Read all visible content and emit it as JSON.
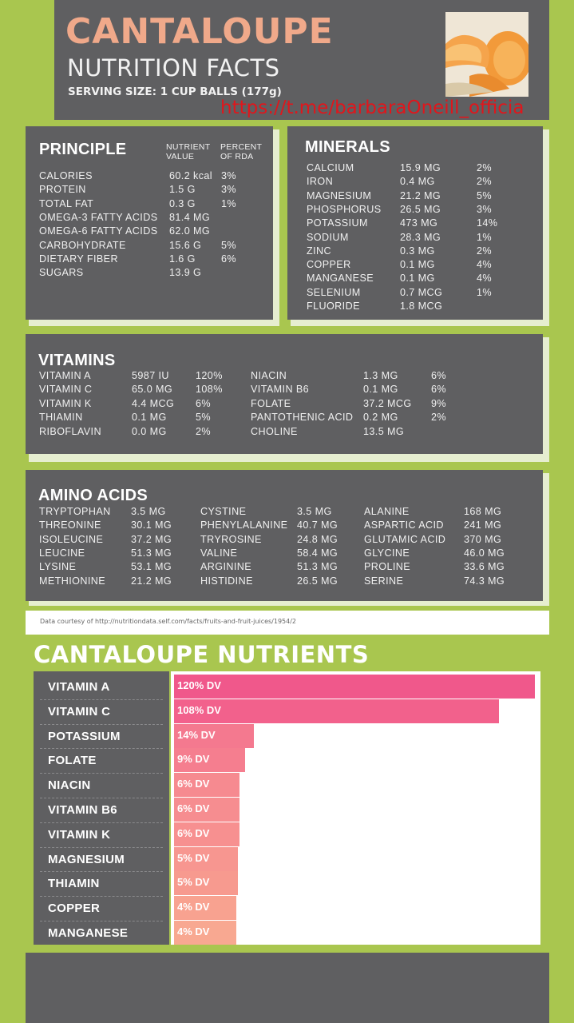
{
  "header": {
    "title": "CANTALOUPE",
    "subtitle": "NUTRITION FACTS",
    "serving": "SERVING SIZE: 1 CUP BALLS (177g)"
  },
  "watermark": "https://t.me/barbaraOneill_officia",
  "principle": {
    "title": "PRINCIPLE",
    "col_value": "NUTRIENT VALUE",
    "col_rda": "PERCENT OF RDA",
    "rows": [
      {
        "name": "CALORIES",
        "value": "60.2 kcal",
        "rda": "3%"
      },
      {
        "name": "PROTEIN",
        "value": "1.5 G",
        "rda": "3%"
      },
      {
        "name": "TOTAL FAT",
        "value": "0.3 G",
        "rda": "1%"
      },
      {
        "name": "OMEGA-3 FATTY ACIDS",
        "value": "81.4 MG",
        "rda": ""
      },
      {
        "name": "OMEGA-6 FATTY ACIDS",
        "value": "62.0 MG",
        "rda": ""
      },
      {
        "name": "CARBOHYDRATE",
        "value": "15.6 G",
        "rda": "5%"
      },
      {
        "name": "DIETARY FIBER",
        "value": "1.6 G",
        "rda": "6%"
      },
      {
        "name": "SUGARS",
        "value": "13.9 G",
        "rda": ""
      }
    ]
  },
  "minerals": {
    "title": "MINERALS",
    "rows": [
      {
        "name": "CALCIUM",
        "value": "15.9 MG",
        "rda": "2%"
      },
      {
        "name": "IRON",
        "value": "0.4 MG",
        "rda": "2%"
      },
      {
        "name": "MAGNESIUM",
        "value": "21.2 MG",
        "rda": "5%"
      },
      {
        "name": "PHOSPHORUS",
        "value": "26.5 MG",
        "rda": "3%"
      },
      {
        "name": "POTASSIUM",
        "value": "473 MG",
        "rda": "14%"
      },
      {
        "name": "SODIUM",
        "value": "28.3 MG",
        "rda": "1%"
      },
      {
        "name": "ZINC",
        "value": "0.3 MG",
        "rda": "2%"
      },
      {
        "name": "COPPER",
        "value": "0.1 MG",
        "rda": "4%"
      },
      {
        "name": "MANGANESE",
        "value": "0.1 MG",
        "rda": "4%"
      },
      {
        "name": "SELENIUM",
        "value": "0.7 MCG",
        "rda": "1%"
      },
      {
        "name": "FLUORIDE",
        "value": "1.8 MCG",
        "rda": ""
      }
    ]
  },
  "vitamins": {
    "title": "VITAMINS",
    "left": [
      {
        "name": "VITAMIN A",
        "value": "5987 IU",
        "rda": "120%"
      },
      {
        "name": "VITAMIN C",
        "value": "65.0 MG",
        "rda": "108%"
      },
      {
        "name": "VITAMIN K",
        "value": "4.4 MCG",
        "rda": "6%"
      },
      {
        "name": "THIAMIN",
        "value": "0.1 MG",
        "rda": "5%"
      },
      {
        "name": "RIBOFLAVIN",
        "value": "0.0 MG",
        "rda": "2%"
      }
    ],
    "right": [
      {
        "name": "NIACIN",
        "value": "1.3 MG",
        "rda": "6%"
      },
      {
        "name": "VITAMIN B6",
        "value": "0.1 MG",
        "rda": "6%"
      },
      {
        "name": "FOLATE",
        "value": "37.2 MCG",
        "rda": "9%"
      },
      {
        "name": "PANTOTHENIC ACID",
        "value": "0.2 MG",
        "rda": "2%"
      },
      {
        "name": "CHOLINE",
        "value": "13.5 MG",
        "rda": ""
      }
    ]
  },
  "amino": {
    "title": "AMINO ACIDS",
    "col1": [
      {
        "name": "TRYPTOPHAN",
        "value": "3.5 MG"
      },
      {
        "name": "THREONINE",
        "value": "30.1 MG"
      },
      {
        "name": "ISOLEUCINE",
        "value": "37.2 MG"
      },
      {
        "name": "LEUCINE",
        "value": "51.3 MG"
      },
      {
        "name": "LYSINE",
        "value": "53.1 MG"
      },
      {
        "name": "METHIONINE",
        "value": "21.2 MG"
      }
    ],
    "col2": [
      {
        "name": "CYSTINE",
        "value": "3.5 MG"
      },
      {
        "name": "PHENYLALANINE",
        "value": "40.7 MG"
      },
      {
        "name": "TRYROSINE",
        "value": "24.8 MG"
      },
      {
        "name": "VALINE",
        "value": "58.4 MG"
      },
      {
        "name": "ARGININE",
        "value": "51.3 MG"
      },
      {
        "name": "HISTIDINE",
        "value": "26.5 MG"
      }
    ],
    "col3": [
      {
        "name": "ALANINE",
        "value": "168 MG"
      },
      {
        "name": "ASPARTIC ACID",
        "value": "241 MG"
      },
      {
        "name": "GLUTAMIC ACID",
        "value": "370 MG"
      },
      {
        "name": "GLYCINE",
        "value": "46.0 MG"
      },
      {
        "name": "PROLINE",
        "value": "33.6 MG"
      },
      {
        "name": "SERINE",
        "value": "74.3 MG"
      }
    ]
  },
  "credit": "Data courtesy of http://nutritiondata.self.com/facts/fruits-and-fruit-juices/1954/2",
  "chart_data": {
    "type": "bar",
    "title": "CANTALOUPE NUTRIENTS",
    "categories": [
      "VITAMIN A",
      "VITAMIN C",
      "POTASSIUM",
      "FOLATE",
      "NIACIN",
      "VITAMIN B6",
      "VITAMIN K",
      "MAGNESIUM",
      "THIAMIN",
      "COPPER",
      "MANGANESE"
    ],
    "values": [
      120,
      108,
      14,
      9,
      6,
      6,
      6,
      5,
      5,
      4,
      4
    ],
    "value_labels": [
      "120% DV",
      "108% DV",
      "14% DV",
      "9% DV",
      "6% DV",
      "6% DV",
      "6% DV",
      "5% DV",
      "5% DV",
      "4% DV",
      "4% DV"
    ],
    "bar_colors": [
      "#f0588b",
      "#f2618c",
      "#f4798f",
      "#f57e8f",
      "#f68a90",
      "#f68d90",
      "#f79090",
      "#f79690",
      "#f79a8f",
      "#f8a290",
      "#f8a891"
    ],
    "orientation": "horizontal",
    "xlim": [
      0,
      120
    ]
  }
}
